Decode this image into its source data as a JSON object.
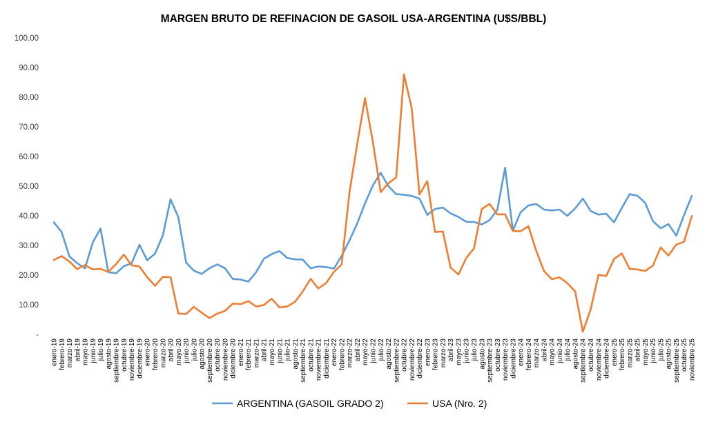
{
  "chart_data": {
    "type": "line",
    "title": "MARGEN BRUTO DE REFINACION DE GASOIL USA-ARGENTINA (U$S/BBL)",
    "xlabel": "",
    "ylabel": "",
    "ylim": [
      0,
      100
    ],
    "yticks": [
      "-",
      "10.00",
      "20.00",
      "30.00",
      "40.00",
      "50.00",
      "60.00",
      "70.00",
      "80.00",
      "90.00",
      "100.00"
    ],
    "grid": false,
    "legend_position": "bottom",
    "categories": [
      "enero-19",
      "febrero-19",
      "marzo-19",
      "abril-19",
      "mayo-19",
      "junio-19",
      "julio-19",
      "agosto-19",
      "septiembre-19",
      "octubre-19",
      "noviembre-19",
      "diciembre-19",
      "enero-20",
      "febrero-20",
      "marzo-20",
      "abril-20",
      "mayo-20",
      "junio-20",
      "julio-20",
      "agosto-20",
      "septiembre-20",
      "octubre-20",
      "noviembre-20",
      "diciembre-20",
      "enero-21",
      "febrero-21",
      "marzo-21",
      "abril-21",
      "mayo-21",
      "junio-21",
      "julio-21",
      "agosto-21",
      "septiembre-21",
      "octubre-21",
      "noviembre-21",
      "diciembre-21",
      "enero-22",
      "febrero-22",
      "marzo-22",
      "abril-22",
      "mayo-22",
      "junio-22",
      "julio-22",
      "agosto-22",
      "septiembre-22",
      "octubre-22",
      "noviembre-22",
      "diciembre-22",
      "enero-23",
      "febrero-23",
      "marzo-23",
      "abril-23",
      "mayo-23",
      "junio-23",
      "julio-23",
      "agosto-23",
      "septiembre-23",
      "octubre-23",
      "noviembre-23",
      "diciembre-23",
      "enero-24",
      "febrero-24",
      "marzo-24",
      "abril-24",
      "mayo-24",
      "junio-24",
      "julio-24",
      "agosto-24",
      "septiembre-24",
      "octubre-24",
      "noviembre-24",
      "diciembre-24",
      "enero-25",
      "febrero-25",
      "marzo-25",
      "abril-25",
      "mayo-25",
      "junio-25",
      "julio-25",
      "agosto-25",
      "septiembre-25",
      "octubre-25",
      "noviembre-25"
    ],
    "series": [
      {
        "name": "ARGENTINA (GASOIL GRADO 2)",
        "color": "#5B9BD5",
        "values": [
          37.8,
          34.5,
          26.3,
          24.0,
          22.3,
          31.0,
          35.7,
          21.0,
          20.6,
          23.0,
          24.0,
          30.2,
          25.0,
          27.2,
          33.3,
          45.6,
          39.5,
          24.2,
          21.5,
          20.4,
          22.3,
          23.6,
          22.3,
          18.7,
          18.5,
          17.8,
          21.0,
          25.5,
          27.1,
          28.1,
          25.8,
          25.3,
          25.2,
          22.3,
          22.9,
          22.7,
          22.2,
          26.5,
          31.7,
          37.5,
          44.2,
          50.2,
          54.5,
          50.0,
          47.3,
          47.1,
          46.7,
          45.8,
          40.3,
          42.3,
          42.8,
          40.8,
          39.6,
          38.0,
          37.9,
          37.1,
          38.5,
          42.0,
          56.2,
          35.0,
          41.2,
          43.5,
          44.0,
          42.1,
          41.8,
          42.1,
          40.0,
          42.5,
          45.8,
          41.6,
          40.4,
          40.7,
          37.8,
          42.6,
          47.3,
          46.8,
          44.4,
          38.2,
          35.8,
          37.2,
          33.3,
          40.2,
          46.7
        ]
      },
      {
        "name": "USA (Nro. 2)",
        "color": "#ED7D31",
        "values": [
          25.1,
          26.4,
          24.6,
          22.0,
          23.4,
          21.9,
          22.1,
          21.1,
          23.7,
          26.9,
          23.3,
          22.9,
          19.3,
          16.4,
          19.4,
          19.3,
          7.0,
          6.9,
          9.3,
          7.3,
          5.5,
          7.0,
          7.9,
          10.4,
          10.2,
          11.2,
          9.4,
          9.9,
          12.0,
          9.1,
          9.4,
          11.0,
          14.5,
          18.7,
          15.5,
          17.3,
          21.1,
          23.6,
          48.0,
          64.4,
          79.7,
          65.0,
          48.0,
          51.0,
          52.9,
          87.7,
          76.3,
          47.2,
          51.7,
          34.5,
          34.7,
          22.5,
          20.2,
          25.7,
          29.0,
          42.3,
          44.0,
          40.5,
          40.5,
          34.9,
          34.8,
          36.5,
          28.2,
          21.4,
          18.6,
          19.2,
          17.3,
          14.5,
          0.9,
          8.4,
          20.1,
          19.7,
          25.4,
          27.3,
          22.1,
          21.9,
          21.4,
          23.2,
          29.3,
          26.6,
          30.3,
          31.2,
          39.9
        ]
      }
    ]
  }
}
